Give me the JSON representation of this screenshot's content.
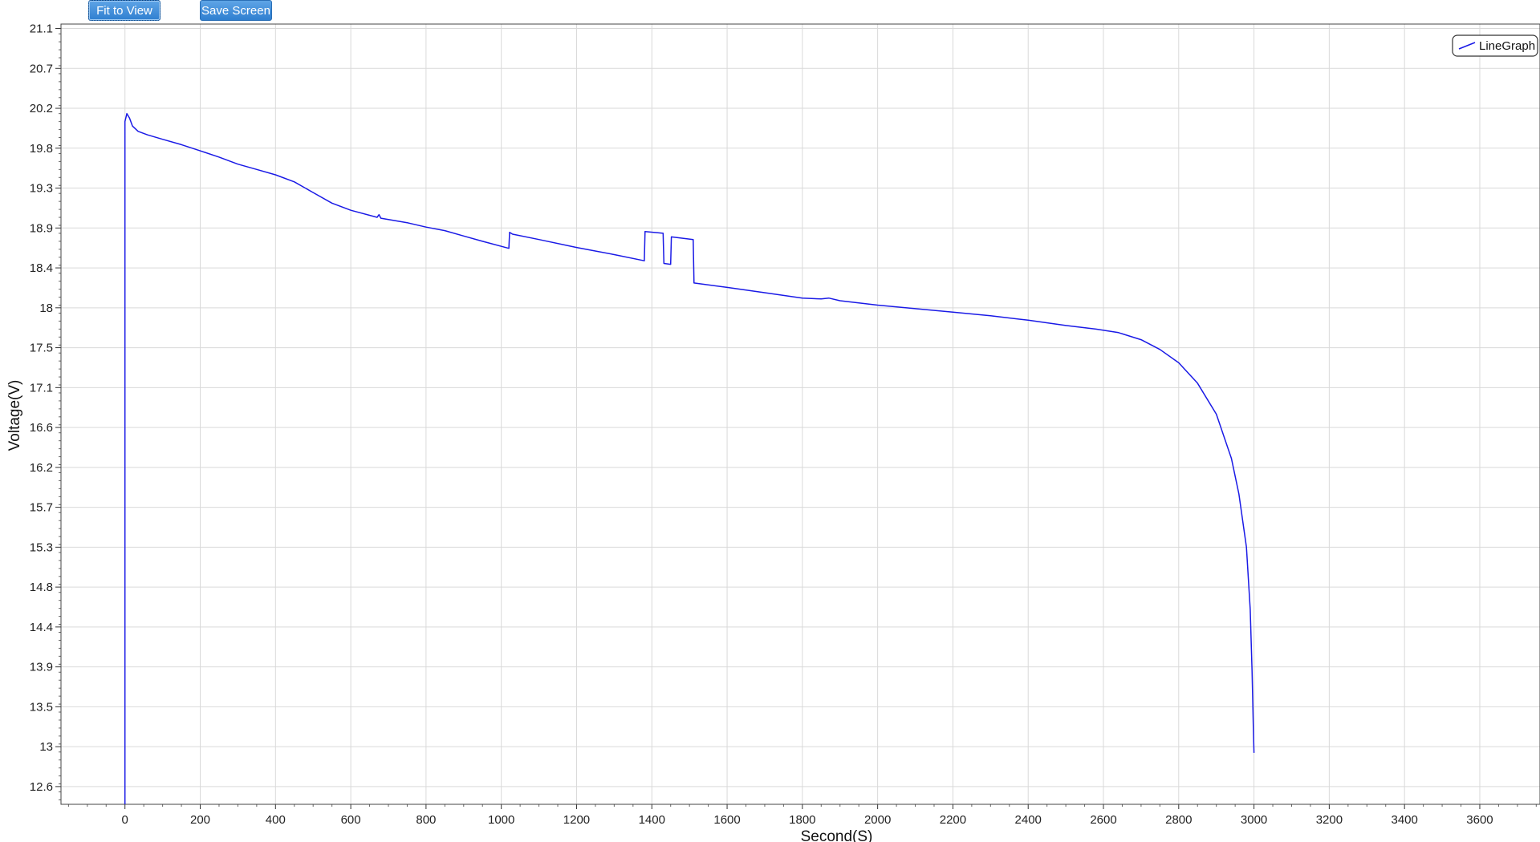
{
  "toolbar": {
    "fit_label": "Fit to View",
    "save_label": "Save Screen"
  },
  "chart_data": {
    "type": "line",
    "xlabel": "Second(S)",
    "ylabel": "Voltage(V)",
    "xlim": [
      -170,
      3760
    ],
    "ylim": [
      12.4,
      21.2
    ],
    "x_ticks": [
      0,
      200,
      400,
      600,
      800,
      1000,
      1200,
      1400,
      1600,
      1800,
      2000,
      2200,
      2400,
      2600,
      2800,
      3000,
      3200,
      3400,
      3600
    ],
    "y_ticks": [
      {
        "v": 12.6,
        "label": "12.6"
      },
      {
        "v": 13.05,
        "label": "13"
      },
      {
        "v": 13.5,
        "label": "13.5"
      },
      {
        "v": 13.95,
        "label": "13.9"
      },
      {
        "v": 14.4,
        "label": "14.4"
      },
      {
        "v": 14.85,
        "label": "14.8"
      },
      {
        "v": 15.3,
        "label": "15.3"
      },
      {
        "v": 15.75,
        "label": "15.7"
      },
      {
        "v": 16.2,
        "label": "16.2"
      },
      {
        "v": 16.65,
        "label": "16.6"
      },
      {
        "v": 17.1,
        "label": "17.1"
      },
      {
        "v": 17.55,
        "label": "17.5"
      },
      {
        "v": 18.0,
        "label": "18"
      },
      {
        "v": 18.45,
        "label": "18.4"
      },
      {
        "v": 18.9,
        "label": "18.9"
      },
      {
        "v": 19.35,
        "label": "19.3"
      },
      {
        "v": 19.8,
        "label": "19.8"
      },
      {
        "v": 20.25,
        "label": "20.2"
      },
      {
        "v": 20.7,
        "label": "20.7"
      },
      {
        "v": 21.15,
        "label": "21.1"
      }
    ],
    "grid": true,
    "legend_position": "top-right",
    "series": [
      {
        "name": "LineGraph",
        "color": "#1a1ae6",
        "points": [
          [
            0,
            12.4
          ],
          [
            0,
            20.1
          ],
          [
            5,
            20.19
          ],
          [
            12,
            20.14
          ],
          [
            20,
            20.05
          ],
          [
            35,
            19.99
          ],
          [
            60,
            19.95
          ],
          [
            100,
            19.9
          ],
          [
            150,
            19.84
          ],
          [
            200,
            19.77
          ],
          [
            250,
            19.7
          ],
          [
            300,
            19.62
          ],
          [
            350,
            19.56
          ],
          [
            400,
            19.5
          ],
          [
            450,
            19.42
          ],
          [
            500,
            19.3
          ],
          [
            550,
            19.18
          ],
          [
            600,
            19.1
          ],
          [
            670,
            19.02
          ],
          [
            675,
            19.05
          ],
          [
            680,
            19.01
          ],
          [
            750,
            18.96
          ],
          [
            800,
            18.91
          ],
          [
            850,
            18.87
          ],
          [
            900,
            18.81
          ],
          [
            950,
            18.75
          ],
          [
            1020,
            18.67
          ],
          [
            1022,
            18.85
          ],
          [
            1030,
            18.83
          ],
          [
            1100,
            18.77
          ],
          [
            1200,
            18.68
          ],
          [
            1300,
            18.6
          ],
          [
            1380,
            18.53
          ],
          [
            1382,
            18.86
          ],
          [
            1430,
            18.84
          ],
          [
            1432,
            18.5
          ],
          [
            1450,
            18.49
          ],
          [
            1452,
            18.8
          ],
          [
            1510,
            18.77
          ],
          [
            1512,
            18.28
          ],
          [
            1600,
            18.23
          ],
          [
            1700,
            18.17
          ],
          [
            1800,
            18.11
          ],
          [
            1850,
            18.1
          ],
          [
            1870,
            18.11
          ],
          [
            1900,
            18.08
          ],
          [
            2000,
            18.03
          ],
          [
            2100,
            17.99
          ],
          [
            2200,
            17.95
          ],
          [
            2300,
            17.91
          ],
          [
            2400,
            17.86
          ],
          [
            2500,
            17.8
          ],
          [
            2580,
            17.76
          ],
          [
            2640,
            17.72
          ],
          [
            2700,
            17.64
          ],
          [
            2750,
            17.53
          ],
          [
            2800,
            17.38
          ],
          [
            2850,
            17.15
          ],
          [
            2900,
            16.8
          ],
          [
            2940,
            16.3
          ],
          [
            2960,
            15.9
          ],
          [
            2980,
            15.3
          ],
          [
            2990,
            14.6
          ],
          [
            2995,
            13.9
          ],
          [
            2998,
            13.3
          ],
          [
            3000,
            12.98
          ]
        ]
      }
    ]
  }
}
